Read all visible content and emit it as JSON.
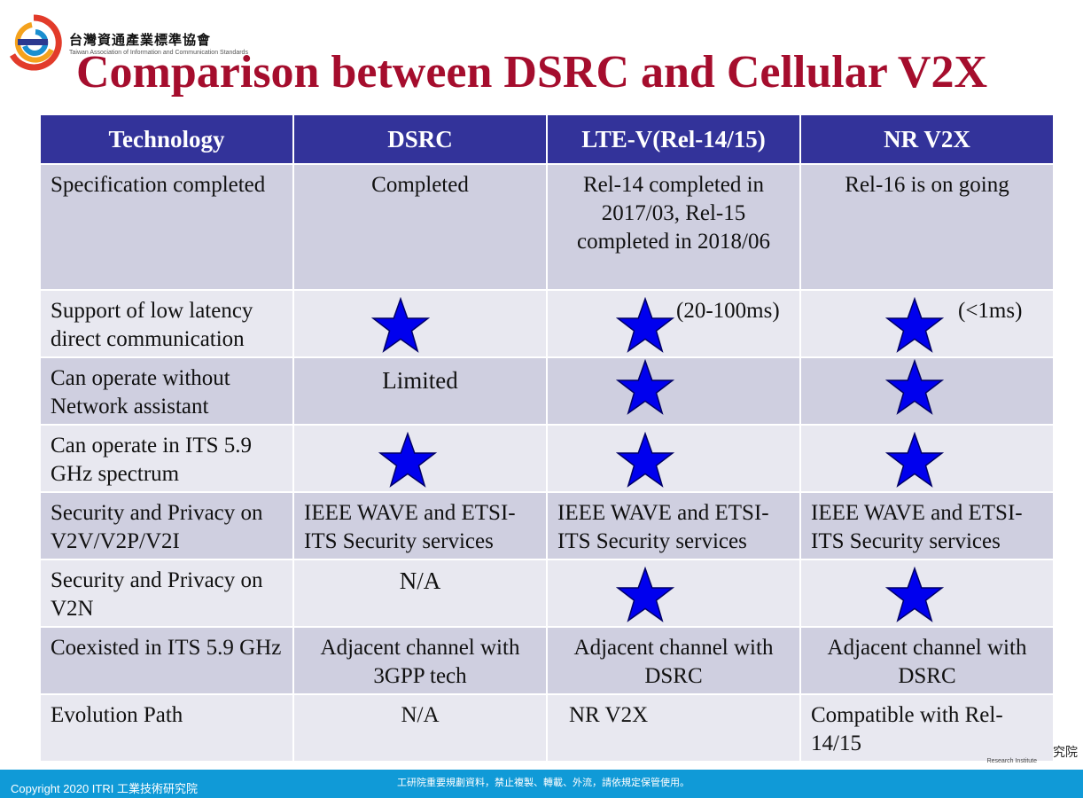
{
  "header": {
    "org_name": "台灣資通產業標準協會",
    "org_subtitle": "Taiwan Association of Information and Communication Standards",
    "title": "Comparison between DSRC and Cellular V2X"
  },
  "table": {
    "columns": [
      "Technology",
      "DSRC",
      "LTE-V(Rel-14/15)",
      "NR V2X"
    ],
    "rows": [
      {
        "label": "Specification completed",
        "dsrc": "Completed",
        "ltev": "Rel-14 completed in 2017/03, Rel-15 completed in 2018/06",
        "nr": "Rel-16 is on going"
      },
      {
        "label": "Support of low latency direct communication",
        "dsrc": "",
        "ltev": "(20-100ms)",
        "nr": "(<1ms)"
      },
      {
        "label": "Can operate without Network assistant",
        "dsrc": "Limited",
        "ltev": "",
        "nr": ""
      },
      {
        "label": "Can operate in ITS 5.9 GHz spectrum",
        "dsrc": "",
        "ltev": "",
        "nr": ""
      },
      {
        "label": "Security and Privacy on V2V/V2P/V2I",
        "dsrc": "IEEE  WAVE and ETSI-ITS Security services",
        "ltev": "IEEE  WAVE and ETSI-ITS Security services",
        "nr": "IEEE  WAVE and ETSI-ITS Security services"
      },
      {
        "label": "Security and Privacy on V2N",
        "dsrc": "N/A",
        "ltev": "",
        "nr": ""
      },
      {
        "label": "Coexisted in ITS 5.9 GHz",
        "dsrc": "Adjacent channel with 3GPP tech",
        "ltev": "Adjacent channel with DSRC",
        "nr": "Adjacent channel with DSRC"
      },
      {
        "label": "Evolution Path",
        "dsrc": "N/A",
        "ltev": "NR V2X",
        "nr": "Compatible with Rel-14/15"
      }
    ]
  },
  "background_logo": {
    "text": "究院",
    "subtext": "Research Institute"
  },
  "footer": {
    "copyright": "Copyright 2020 ITRI 工業技術研究院",
    "notice": "工研院重要規劃資料，禁止複製、轉載、外流，請依規定保管使用。"
  },
  "colors": {
    "title": "#a50d2d",
    "header_bg": "#33339a",
    "row_dark": "#cfcfe0",
    "row_light": "#e8e8f0",
    "star": "#0000ee",
    "footer": "#109ad7"
  }
}
